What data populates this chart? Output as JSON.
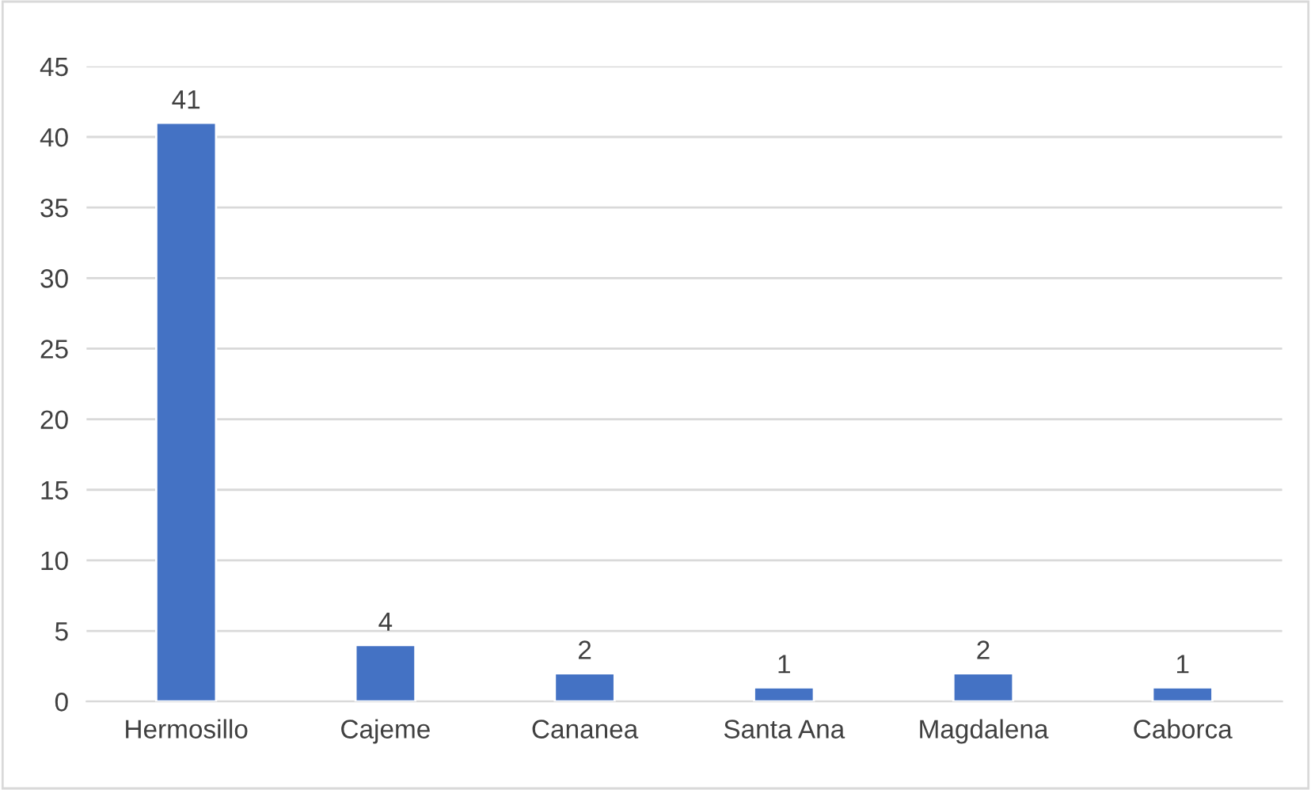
{
  "chart_data": {
    "type": "bar",
    "categories": [
      "Hermosillo",
      "Cajeme",
      "Cananea",
      "Santa Ana",
      "Magdalena",
      "Caborca"
    ],
    "values": [
      41,
      4,
      2,
      1,
      2,
      1
    ],
    "color": "#4472c4",
    "ylim": [
      0,
      45
    ],
    "yticks": [
      0,
      5,
      10,
      15,
      20,
      25,
      30,
      35,
      40,
      45
    ],
    "grid": "y",
    "data_labels": true
  }
}
